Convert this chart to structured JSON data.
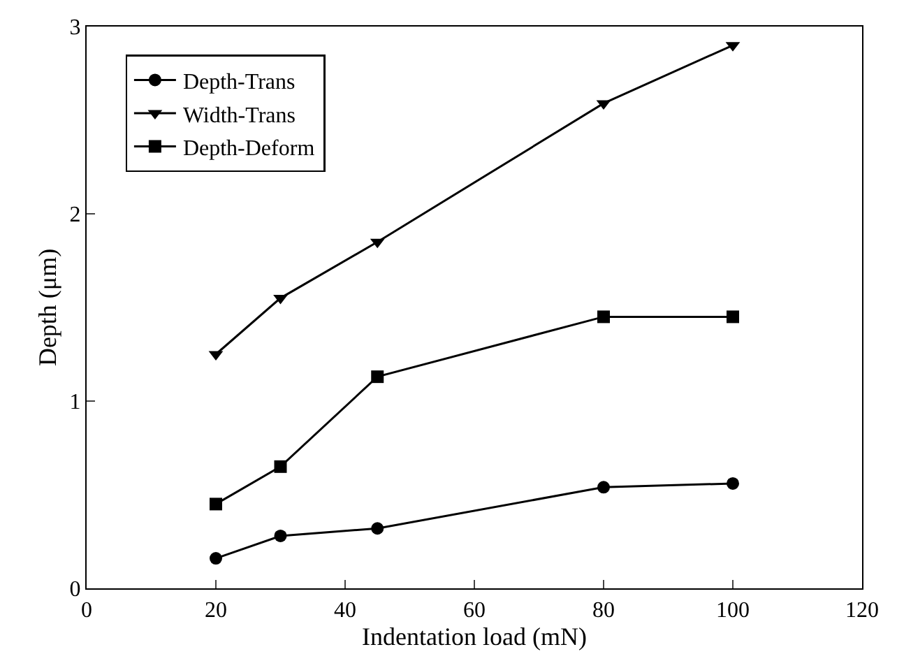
{
  "chart_data": {
    "type": "line",
    "xlabel": "Indentation load (mN)",
    "ylabel": "Depth (μm)",
    "x": [
      20,
      30,
      45,
      80,
      100
    ],
    "series": [
      {
        "name": "Depth-Trans",
        "color": "#000000",
        "marker": "circle",
        "values": [
          0.16,
          0.28,
          0.32,
          0.54,
          0.56
        ]
      },
      {
        "name": "Width-Trans",
        "color": "#000000",
        "marker": "triangle",
        "values": [
          1.25,
          1.55,
          1.85,
          2.59,
          2.9
        ]
      },
      {
        "name": "Depth-Deform",
        "color": "#000000",
        "marker": "square",
        "values": [
          0.45,
          0.65,
          1.13,
          1.45,
          1.45
        ]
      }
    ],
    "xlim": [
      0,
      120
    ],
    "xticks": [
      0,
      20,
      40,
      60,
      80,
      100,
      120
    ],
    "ylim": [
      0,
      3
    ],
    "yticks": [
      0,
      1,
      2,
      3
    ],
    "legend": "top left",
    "line_style": "solid"
  }
}
